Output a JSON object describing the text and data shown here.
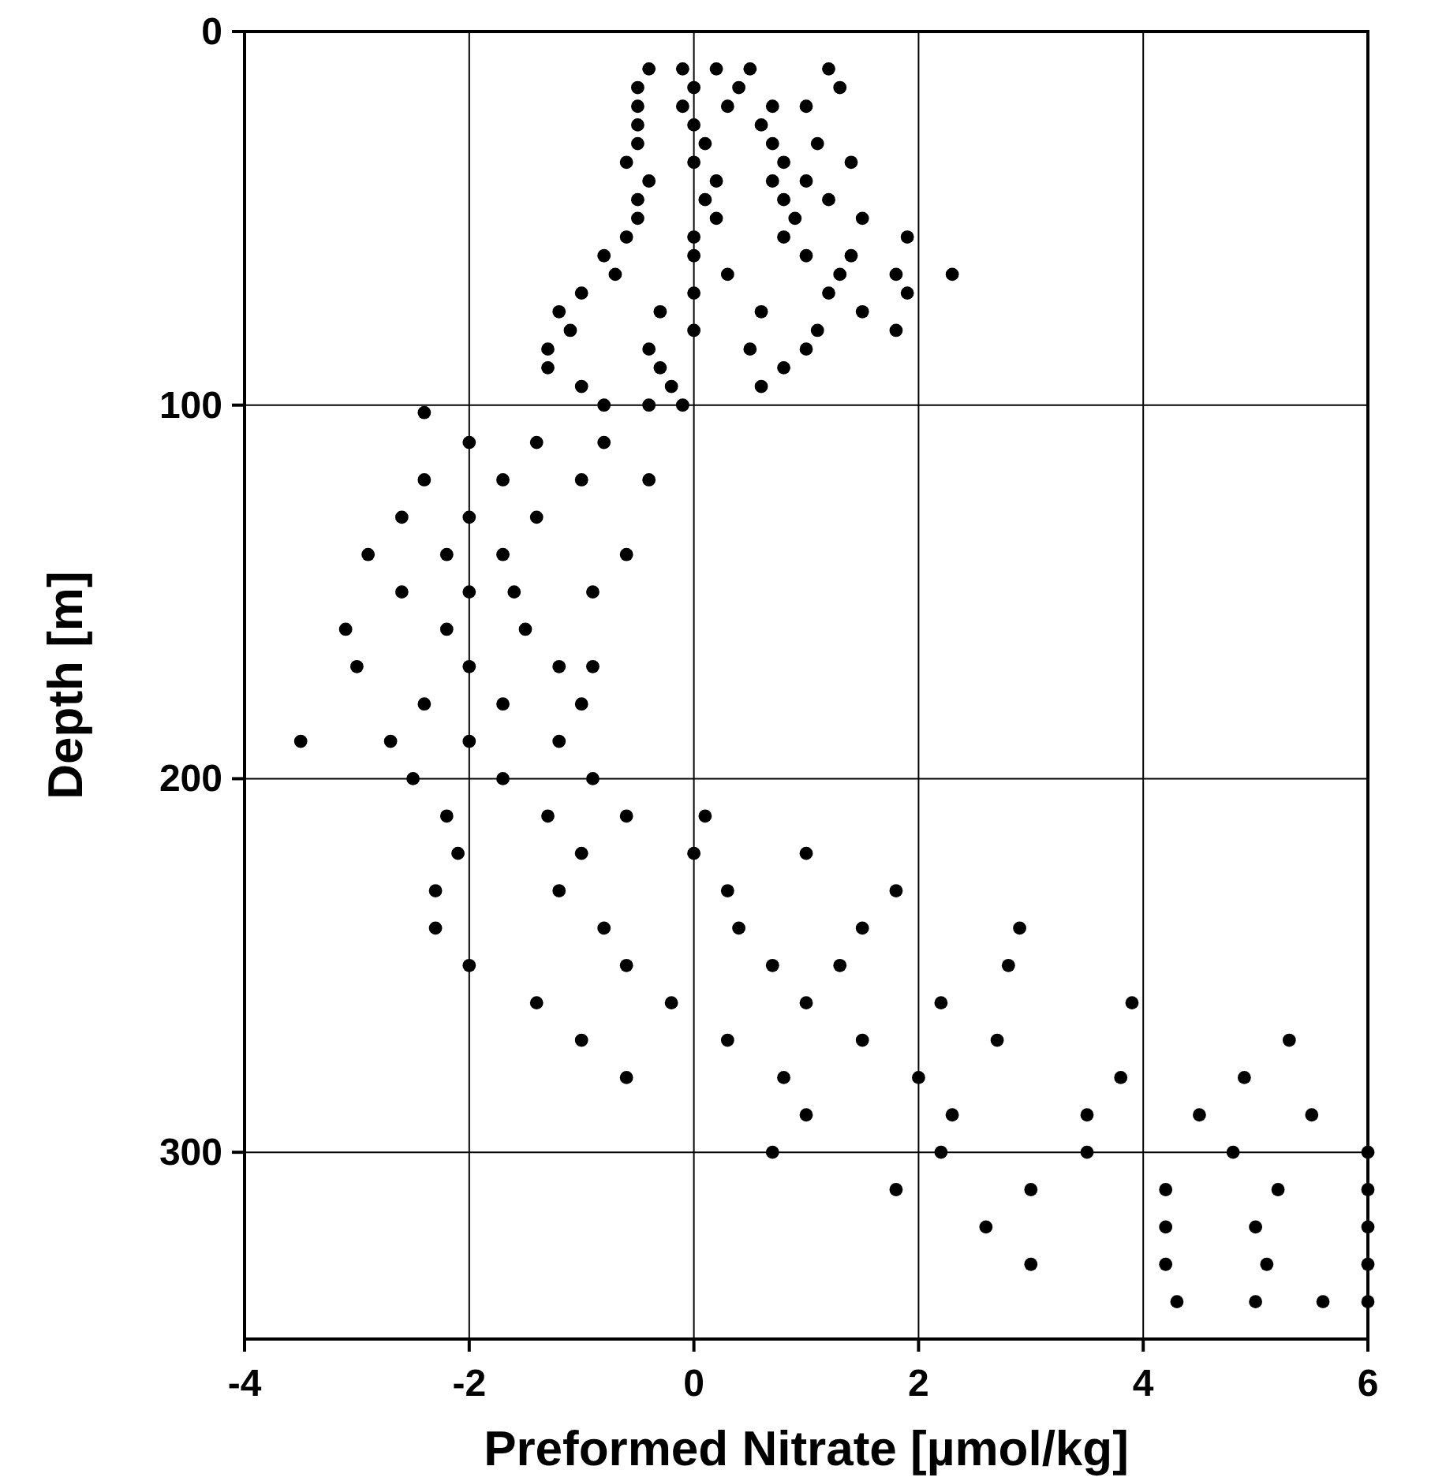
{
  "chart_data": {
    "type": "scatter",
    "xlabel": "Preformed Nitrate [µmol/kg]",
    "ylabel": "Depth [m]",
    "xlim": [
      -4,
      6
    ],
    "ylim": [
      350,
      0
    ],
    "xticks": [
      -4,
      -2,
      0,
      2,
      4,
      6
    ],
    "yticks": [
      0,
      100,
      200,
      300
    ],
    "grid": true,
    "marker": "circle",
    "series": [
      {
        "color": "#000000",
        "x": [
          -0.4,
          -0.1,
          0.2,
          0.5,
          1.2,
          -0.5,
          0,
          0.4,
          1.3,
          -0.5,
          -0.1,
          0.3,
          0.7,
          1.0,
          -0.5,
          0,
          0.6,
          -0.5,
          0.1,
          0.7,
          1.1,
          -0.6,
          0,
          0.8,
          1.4,
          -0.4,
          0.2,
          0.7,
          1.0,
          -0.5,
          0.1,
          0.8,
          1.2,
          -0.5,
          0.2,
          0.9,
          1.5,
          -0.6,
          0,
          0.8,
          1.9,
          -0.8,
          0,
          1.0,
          1.4,
          -0.7,
          0.3,
          1.3,
          1.8,
          2.3,
          -1.0,
          0,
          1.2,
          1.9,
          -1.2,
          -0.3,
          0.6,
          1.5,
          -1.1,
          0,
          1.1,
          1.8,
          -1.3,
          -0.4,
          0.5,
          1.0,
          -1.3,
          -0.3,
          0.8,
          -1.0,
          -0.2,
          0.6,
          -0.8,
          -0.4,
          -0.1,
          -2.4,
          -2.0,
          -1.4,
          -0.8,
          -2.4,
          -1.7,
          -1.0,
          -0.4,
          -2.6,
          -2.0,
          -1.4,
          -2.9,
          -2.2,
          -1.7,
          -0.6,
          -2.6,
          -2.0,
          -1.6,
          -0.9,
          -3.1,
          -2.2,
          -1.5,
          -3.0,
          -2.0,
          -1.2,
          -0.9,
          -2.4,
          -1.7,
          -1.0,
          -3.5,
          -2.7,
          -2.0,
          -1.2,
          -2.5,
          -1.7,
          -0.9,
          -2.2,
          -1.3,
          -0.6,
          0.1,
          -2.1,
          -1.0,
          0.0,
          1.0,
          -2.3,
          -1.2,
          0.3,
          1.8,
          -2.3,
          -0.8,
          0.4,
          1.5,
          2.9,
          -2.0,
          -0.6,
          0.7,
          1.3,
          2.8,
          -1.4,
          -0.2,
          1.0,
          2.2,
          3.9,
          -1.0,
          0.3,
          1.5,
          2.7,
          5.3,
          -0.6,
          0.8,
          2.0,
          3.8,
          4.9,
          1.0,
          2.3,
          3.5,
          4.5,
          5.5,
          0.7,
          2.2,
          3.5,
          4.8,
          6.0,
          1.8,
          3.0,
          4.2,
          5.2,
          6.0,
          2.6,
          4.2,
          5.0,
          6.0,
          3.0,
          4.2,
          5.1,
          6.0,
          4.3,
          5.0,
          5.6,
          6.0
        ],
        "values": [
          10,
          10,
          10,
          10,
          10,
          15,
          15,
          15,
          15,
          20,
          20,
          20,
          20,
          20,
          25,
          25,
          25,
          30,
          30,
          30,
          30,
          35,
          35,
          35,
          35,
          40,
          40,
          40,
          40,
          45,
          45,
          45,
          45,
          50,
          50,
          50,
          50,
          55,
          55,
          55,
          55,
          60,
          60,
          60,
          60,
          65,
          65,
          65,
          65,
          65,
          70,
          70,
          70,
          70,
          75,
          75,
          75,
          75,
          80,
          80,
          80,
          80,
          85,
          85,
          85,
          85,
          90,
          90,
          90,
          95,
          95,
          95,
          100,
          100,
          100,
          102,
          110,
          110,
          110,
          120,
          120,
          120,
          120,
          130,
          130,
          130,
          140,
          140,
          140,
          140,
          150,
          150,
          150,
          150,
          160,
          160,
          160,
          170,
          170,
          170,
          170,
          180,
          180,
          180,
          190,
          190,
          190,
          190,
          200,
          200,
          200,
          210,
          210,
          210,
          210,
          220,
          220,
          220,
          220,
          230,
          230,
          230,
          230,
          240,
          240,
          240,
          240,
          240,
          250,
          250,
          250,
          250,
          250,
          260,
          260,
          260,
          260,
          260,
          270,
          270,
          270,
          270,
          270,
          280,
          280,
          280,
          280,
          280,
          290,
          290,
          290,
          290,
          290,
          300,
          300,
          300,
          300,
          300,
          310,
          310,
          310,
          310,
          310,
          320,
          320,
          320,
          320,
          330,
          330,
          330,
          330,
          340,
          340,
          340,
          340
        ]
      }
    ]
  }
}
